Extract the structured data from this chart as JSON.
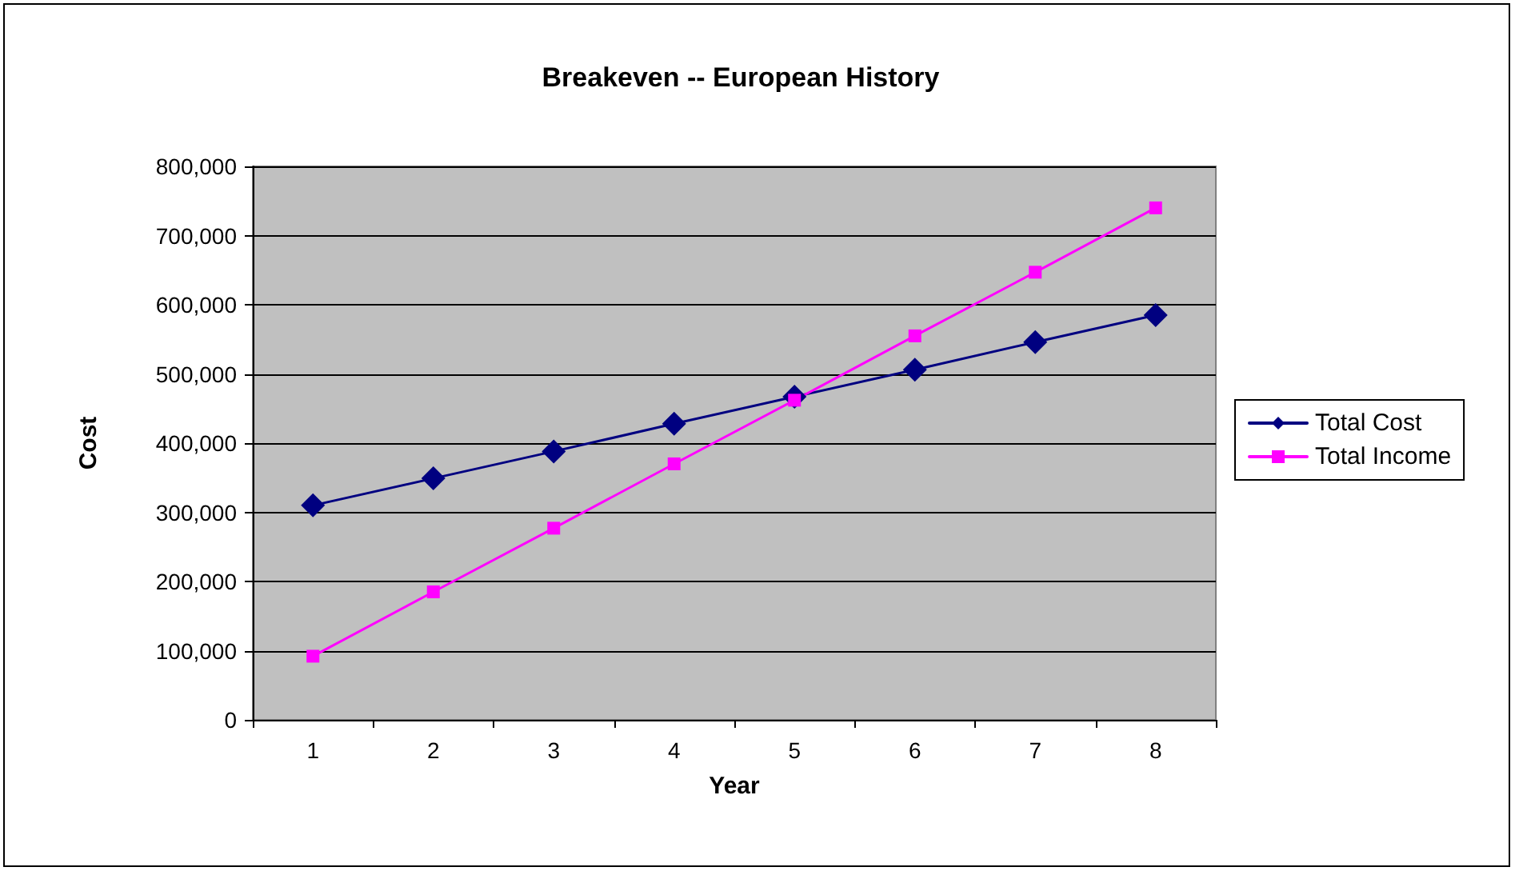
{
  "chart_data": {
    "type": "line",
    "title": "Breakeven -- European History",
    "xlabel": "Year",
    "ylabel": "Cost",
    "categories": [
      "1",
      "2",
      "3",
      "4",
      "5",
      "6",
      "7",
      "8"
    ],
    "series": [
      {
        "name": "Total Cost",
        "color": "#000080",
        "marker": "diamond",
        "values": [
          310000,
          349000,
          388000,
          428000,
          467000,
          506000,
          546000,
          585000
        ]
      },
      {
        "name": "Total Income",
        "color": "#ff00ff",
        "marker": "square",
        "values": [
          92000,
          185000,
          277000,
          370000,
          462000,
          555000,
          647000,
          740000
        ]
      }
    ],
    "ylim": [
      0,
      800000
    ],
    "yticks": [
      {
        "value": 0,
        "label": "0"
      },
      {
        "value": 100000,
        "label": "100,000"
      },
      {
        "value": 200000,
        "label": "200,000"
      },
      {
        "value": 300000,
        "label": "300,000"
      },
      {
        "value": 400000,
        "label": "400,000"
      },
      {
        "value": 500000,
        "label": "500,000"
      },
      {
        "value": 600000,
        "label": "600,000"
      },
      {
        "value": 700000,
        "label": "700,000"
      },
      {
        "value": 800000,
        "label": "800,000"
      }
    ],
    "grid": "y",
    "legend": "right",
    "line_style": "solid"
  }
}
